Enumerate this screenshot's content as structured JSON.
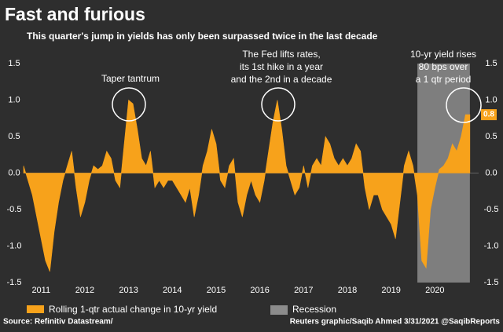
{
  "chart_data": {
    "type": "area",
    "title": "Fast and furious",
    "subtitle": "This quarter's jump in yields has only been surpassed twice in the last decade",
    "source": "Source: Refinitiv Datastream/",
    "credit": "Reuters graphic/Saqib Ahmed 3/31/2021 @SaqibReports",
    "annotations": [
      [
        "Taper tantrum"
      ],
      [
        "The Fed lifts rates,",
        "its 1st hike in a year",
        "and the 2nd in a decade"
      ],
      [
        "10-yr yield rises",
        "80 bps over",
        "a 1 qtr period"
      ]
    ],
    "x": [
      2011.1,
      2011.2,
      2011.3,
      2011.4,
      2011.5,
      2011.6,
      2011.7,
      2011.8,
      2011.9,
      2012.0,
      2012.1,
      2012.2,
      2012.3,
      2012.4,
      2012.5,
      2012.6,
      2012.7,
      2012.8,
      2012.9,
      2013.0,
      2013.1,
      2013.2,
      2013.3,
      2013.4,
      2013.5,
      2013.6,
      2013.7,
      2013.8,
      2013.9,
      2014.0,
      2014.1,
      2014.2,
      2014.3,
      2014.4,
      2014.5,
      2014.6,
      2014.7,
      2014.8,
      2014.9,
      2015.0,
      2015.1,
      2015.2,
      2015.3,
      2015.4,
      2015.5,
      2015.6,
      2015.7,
      2015.8,
      2015.9,
      2016.0,
      2016.1,
      2016.2,
      2016.3,
      2016.4,
      2016.5,
      2016.6,
      2016.7,
      2016.8,
      2016.9,
      2017.0,
      2017.1,
      2017.2,
      2017.3,
      2017.4,
      2017.5,
      2017.6,
      2017.7,
      2017.8,
      2017.9,
      2018.0,
      2018.1,
      2018.2,
      2018.3,
      2018.4,
      2018.5,
      2018.6,
      2018.7,
      2018.8,
      2018.9,
      2019.0,
      2019.1,
      2019.2,
      2019.3,
      2019.4,
      2019.5,
      2019.6,
      2019.7,
      2019.8,
      2019.9,
      2020.0,
      2020.1,
      2020.2,
      2020.3,
      2020.4,
      2020.5,
      2020.6,
      2020.7,
      2020.8,
      2020.9,
      2021.0,
      2021.1,
      2021.2,
      2021.3
    ],
    "series": [
      {
        "name": "Rolling 1-qtr actual change in 10-yr yield",
        "color": "#f7a21b",
        "values": [
          0.1,
          -0.1,
          -0.3,
          -0.6,
          -0.9,
          -1.2,
          -1.35,
          -0.8,
          -0.4,
          -0.1,
          0.1,
          0.3,
          -0.2,
          -0.6,
          -0.4,
          -0.1,
          0.1,
          0.05,
          0.1,
          0.3,
          0.2,
          -0.1,
          -0.2,
          0.4,
          1.0,
          0.95,
          0.6,
          0.2,
          0.1,
          0.3,
          -0.2,
          -0.1,
          -0.2,
          -0.1,
          -0.1,
          -0.2,
          -0.3,
          -0.4,
          -0.2,
          -0.6,
          -0.3,
          0.1,
          0.3,
          0.6,
          0.4,
          -0.1,
          -0.2,
          0.1,
          0.2,
          -0.4,
          -0.6,
          -0.3,
          -0.1,
          -0.3,
          -0.4,
          -0.1,
          0.3,
          0.7,
          1.0,
          0.6,
          0.1,
          -0.1,
          -0.3,
          -0.2,
          0.1,
          -0.2,
          0.1,
          0.2,
          0.1,
          0.5,
          0.4,
          0.2,
          0.1,
          0.2,
          0.1,
          0.2,
          0.4,
          0.3,
          -0.2,
          -0.5,
          -0.3,
          -0.3,
          -0.5,
          -0.6,
          -0.7,
          -0.9,
          -0.4,
          0.1,
          0.3,
          0.1,
          -0.3,
          -1.2,
          -1.3,
          -0.5,
          -0.2,
          0.05,
          0.1,
          0.2,
          0.4,
          0.3,
          0.5,
          0.8,
          0.8
        ]
      }
    ],
    "shaded_regions": [
      {
        "name": "Recession",
        "color": "#8c8c8c",
        "x": [
          2020.1,
          2021.3
        ]
      }
    ],
    "xlim": [
      2011.1,
      2021.5
    ],
    "xticks": [
      2011,
      2012,
      2013,
      2014,
      2015,
      2016,
      2017,
      2018,
      2019,
      2020
    ],
    "ylim": [
      -1.5,
      1.5
    ],
    "yticks": [
      -1.5,
      {
        "value": -1,
        "label": "-1.0"
      },
      -0.5,
      {
        "value": 0,
        "label": "0.0"
      },
      0.5,
      {
        "value": 1,
        "label": "1.0"
      },
      1.5
    ],
    "grid": false
  }
}
